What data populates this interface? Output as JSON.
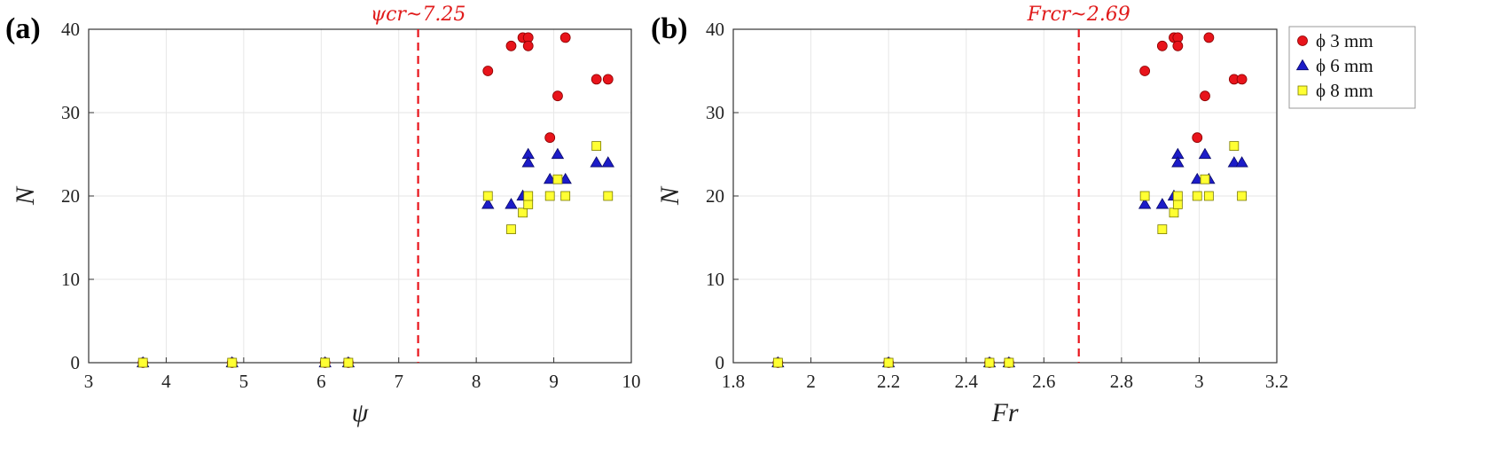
{
  "colors": {
    "d3": "#e8141b",
    "d6": "#1c1cc8",
    "d8": "#ffff33",
    "critical": "#e8141b",
    "grid": "#e6e6e6"
  },
  "legend": [
    {
      "key": "d3",
      "label": "ϕ 3 mm",
      "marker": "circle"
    },
    {
      "key": "d6",
      "label": "ϕ 6 mm",
      "marker": "triangle"
    },
    {
      "key": "d8",
      "label": "ϕ 8 mm",
      "marker": "square"
    }
  ],
  "chart_data": [
    {
      "type": "scatter",
      "panel": "(a)",
      "xlabel": "ψ",
      "ylabel": "N",
      "xlim": [
        3,
        10
      ],
      "ylim": [
        0,
        40
      ],
      "xticks": [
        3,
        4,
        5,
        6,
        7,
        8,
        9,
        10
      ],
      "yticks": [
        0,
        10,
        20,
        30,
        40
      ],
      "critical": {
        "x": 7.25,
        "label": "ψcr~7.25"
      },
      "series": [
        {
          "name": "ϕ 3 mm",
          "key": "d3",
          "marker": "circle",
          "points": [
            [
              3.7,
              0
            ],
            [
              4.85,
              0
            ],
            [
              6.05,
              0
            ],
            [
              6.35,
              0
            ],
            [
              8.15,
              35
            ],
            [
              8.45,
              38
            ],
            [
              8.6,
              39
            ],
            [
              8.67,
              39
            ],
            [
              8.67,
              38
            ],
            [
              9.15,
              39
            ],
            [
              9.05,
              32
            ],
            [
              8.95,
              27
            ],
            [
              9.55,
              34
            ],
            [
              9.7,
              34
            ]
          ]
        },
        {
          "name": "ϕ 6 mm",
          "key": "d6",
          "marker": "triangle",
          "points": [
            [
              3.7,
              0
            ],
            [
              4.85,
              0
            ],
            [
              6.05,
              0
            ],
            [
              6.35,
              0
            ],
            [
              8.15,
              19
            ],
            [
              8.45,
              19
            ],
            [
              8.6,
              20
            ],
            [
              8.67,
              25
            ],
            [
              8.67,
              24
            ],
            [
              8.95,
              22
            ],
            [
              9.05,
              25
            ],
            [
              9.15,
              22
            ],
            [
              9.55,
              24
            ],
            [
              9.7,
              24
            ]
          ]
        },
        {
          "name": "ϕ 8 mm",
          "key": "d8",
          "marker": "square",
          "points": [
            [
              3.7,
              0
            ],
            [
              4.85,
              0
            ],
            [
              6.05,
              0
            ],
            [
              6.35,
              0
            ],
            [
              8.15,
              20
            ],
            [
              8.45,
              16
            ],
            [
              8.6,
              18
            ],
            [
              8.67,
              19
            ],
            [
              8.67,
              20
            ],
            [
              8.95,
              20
            ],
            [
              9.05,
              22
            ],
            [
              9.15,
              20
            ],
            [
              9.55,
              26
            ],
            [
              9.7,
              20
            ]
          ]
        }
      ]
    },
    {
      "type": "scatter",
      "panel": "(b)",
      "xlabel": "Fr",
      "ylabel": "N",
      "xlim": [
        1.8,
        3.2
      ],
      "ylim": [
        0,
        40
      ],
      "xticks": [
        1.8,
        2,
        2.2,
        2.4,
        2.6,
        2.8,
        3,
        3.2
      ],
      "yticks": [
        0,
        10,
        20,
        30,
        40
      ],
      "critical": {
        "x": 2.69,
        "label": "Frcr~2.69"
      },
      "series": [
        {
          "name": "ϕ 3 mm",
          "key": "d3",
          "marker": "circle",
          "points": [
            [
              1.915,
              0
            ],
            [
              2.2,
              0
            ],
            [
              2.46,
              0
            ],
            [
              2.51,
              0
            ],
            [
              2.86,
              35
            ],
            [
              2.905,
              38
            ],
            [
              2.935,
              39
            ],
            [
              2.945,
              39
            ],
            [
              2.945,
              38
            ],
            [
              3.025,
              39
            ],
            [
              3.015,
              32
            ],
            [
              2.995,
              27
            ],
            [
              3.09,
              34
            ],
            [
              3.11,
              34
            ]
          ]
        },
        {
          "name": "ϕ 6 mm",
          "key": "d6",
          "marker": "triangle",
          "points": [
            [
              1.915,
              0
            ],
            [
              2.2,
              0
            ],
            [
              2.46,
              0
            ],
            [
              2.51,
              0
            ],
            [
              2.86,
              19
            ],
            [
              2.905,
              19
            ],
            [
              2.935,
              20
            ],
            [
              2.945,
              25
            ],
            [
              2.945,
              24
            ],
            [
              2.995,
              22
            ],
            [
              3.015,
              25
            ],
            [
              3.025,
              22
            ],
            [
              3.09,
              24
            ],
            [
              3.11,
              24
            ]
          ]
        },
        {
          "name": "ϕ 8 mm",
          "key": "d8",
          "marker": "square",
          "points": [
            [
              1.915,
              0
            ],
            [
              2.2,
              0
            ],
            [
              2.46,
              0
            ],
            [
              2.51,
              0
            ],
            [
              2.86,
              20
            ],
            [
              2.905,
              16
            ],
            [
              2.935,
              18
            ],
            [
              2.945,
              19
            ],
            [
              2.945,
              20
            ],
            [
              2.995,
              20
            ],
            [
              3.015,
              22
            ],
            [
              3.025,
              20
            ],
            [
              3.09,
              26
            ],
            [
              3.11,
              20
            ]
          ]
        }
      ]
    }
  ]
}
